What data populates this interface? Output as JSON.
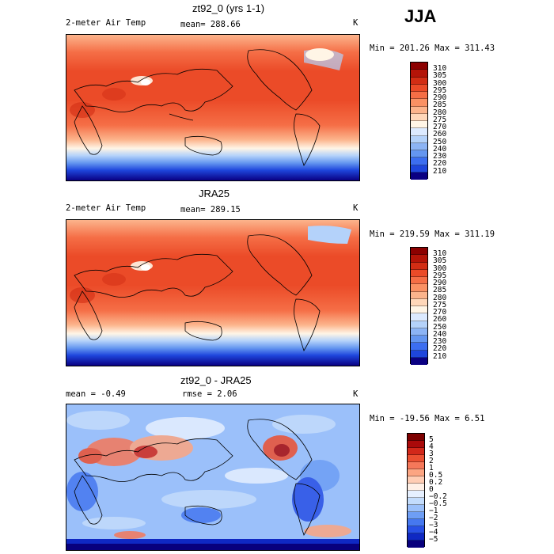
{
  "season_label": "JJA",
  "colors": {
    "temp": [
      "#0a0082",
      "#0f1eb4",
      "#1e46dc",
      "#3c6ef0",
      "#6496f0",
      "#8cb4f5",
      "#b4d2fa",
      "#dceaff",
      "#fff5e6",
      "#ffd7b9",
      "#fcb48c",
      "#fa9164",
      "#f56e46",
      "#eb4b28",
      "#d22d14",
      "#b41408",
      "#8c0000"
    ],
    "diff": [
      "#08007d",
      "#0f28c3",
      "#2850e6",
      "#4678f0",
      "#6e9ef5",
      "#9bc0fa",
      "#c3dcfc",
      "#e6f0ff",
      "#fff0e6",
      "#ffcdb4",
      "#fca582",
      "#f5785a",
      "#eb5032",
      "#d2281a",
      "#aa0a0a",
      "#7d0000"
    ]
  },
  "panels": [
    {
      "title": "zt92_0 (yrs 1-1)",
      "left_label": "2-meter Air Temp",
      "mid_label": "mean= 288.66",
      "unit": "K",
      "minmax": "Min = 201.26 Max = 311.43",
      "ticks": [
        "310",
        "305",
        "300",
        "295",
        "290",
        "285",
        "280",
        "275",
        "270",
        "260",
        "250",
        "240",
        "230",
        "220",
        "210"
      ]
    },
    {
      "title": "JRA25",
      "left_label": "2-meter Air Temp",
      "mid_label": "mean= 289.15",
      "unit": "K",
      "minmax": "Min = 219.59 Max = 311.19",
      "ticks": [
        "310",
        "305",
        "300",
        "295",
        "290",
        "285",
        "280",
        "275",
        "270",
        "260",
        "250",
        "240",
        "230",
        "220",
        "210"
      ]
    },
    {
      "title": "zt92_0 - JRA25",
      "left_label": "mean =  -0.49",
      "mid_label": "rmse =   2.06",
      "unit": "K",
      "minmax": "Min = -19.56 Max =   6.51",
      "ticks": [
        "5",
        "4",
        "3",
        "2",
        "1",
        "0.5",
        "0.2",
        "0",
        "−0.2",
        "−0.5",
        "−1",
        "−2",
        "−3",
        "−4",
        "−5"
      ]
    }
  ]
}
